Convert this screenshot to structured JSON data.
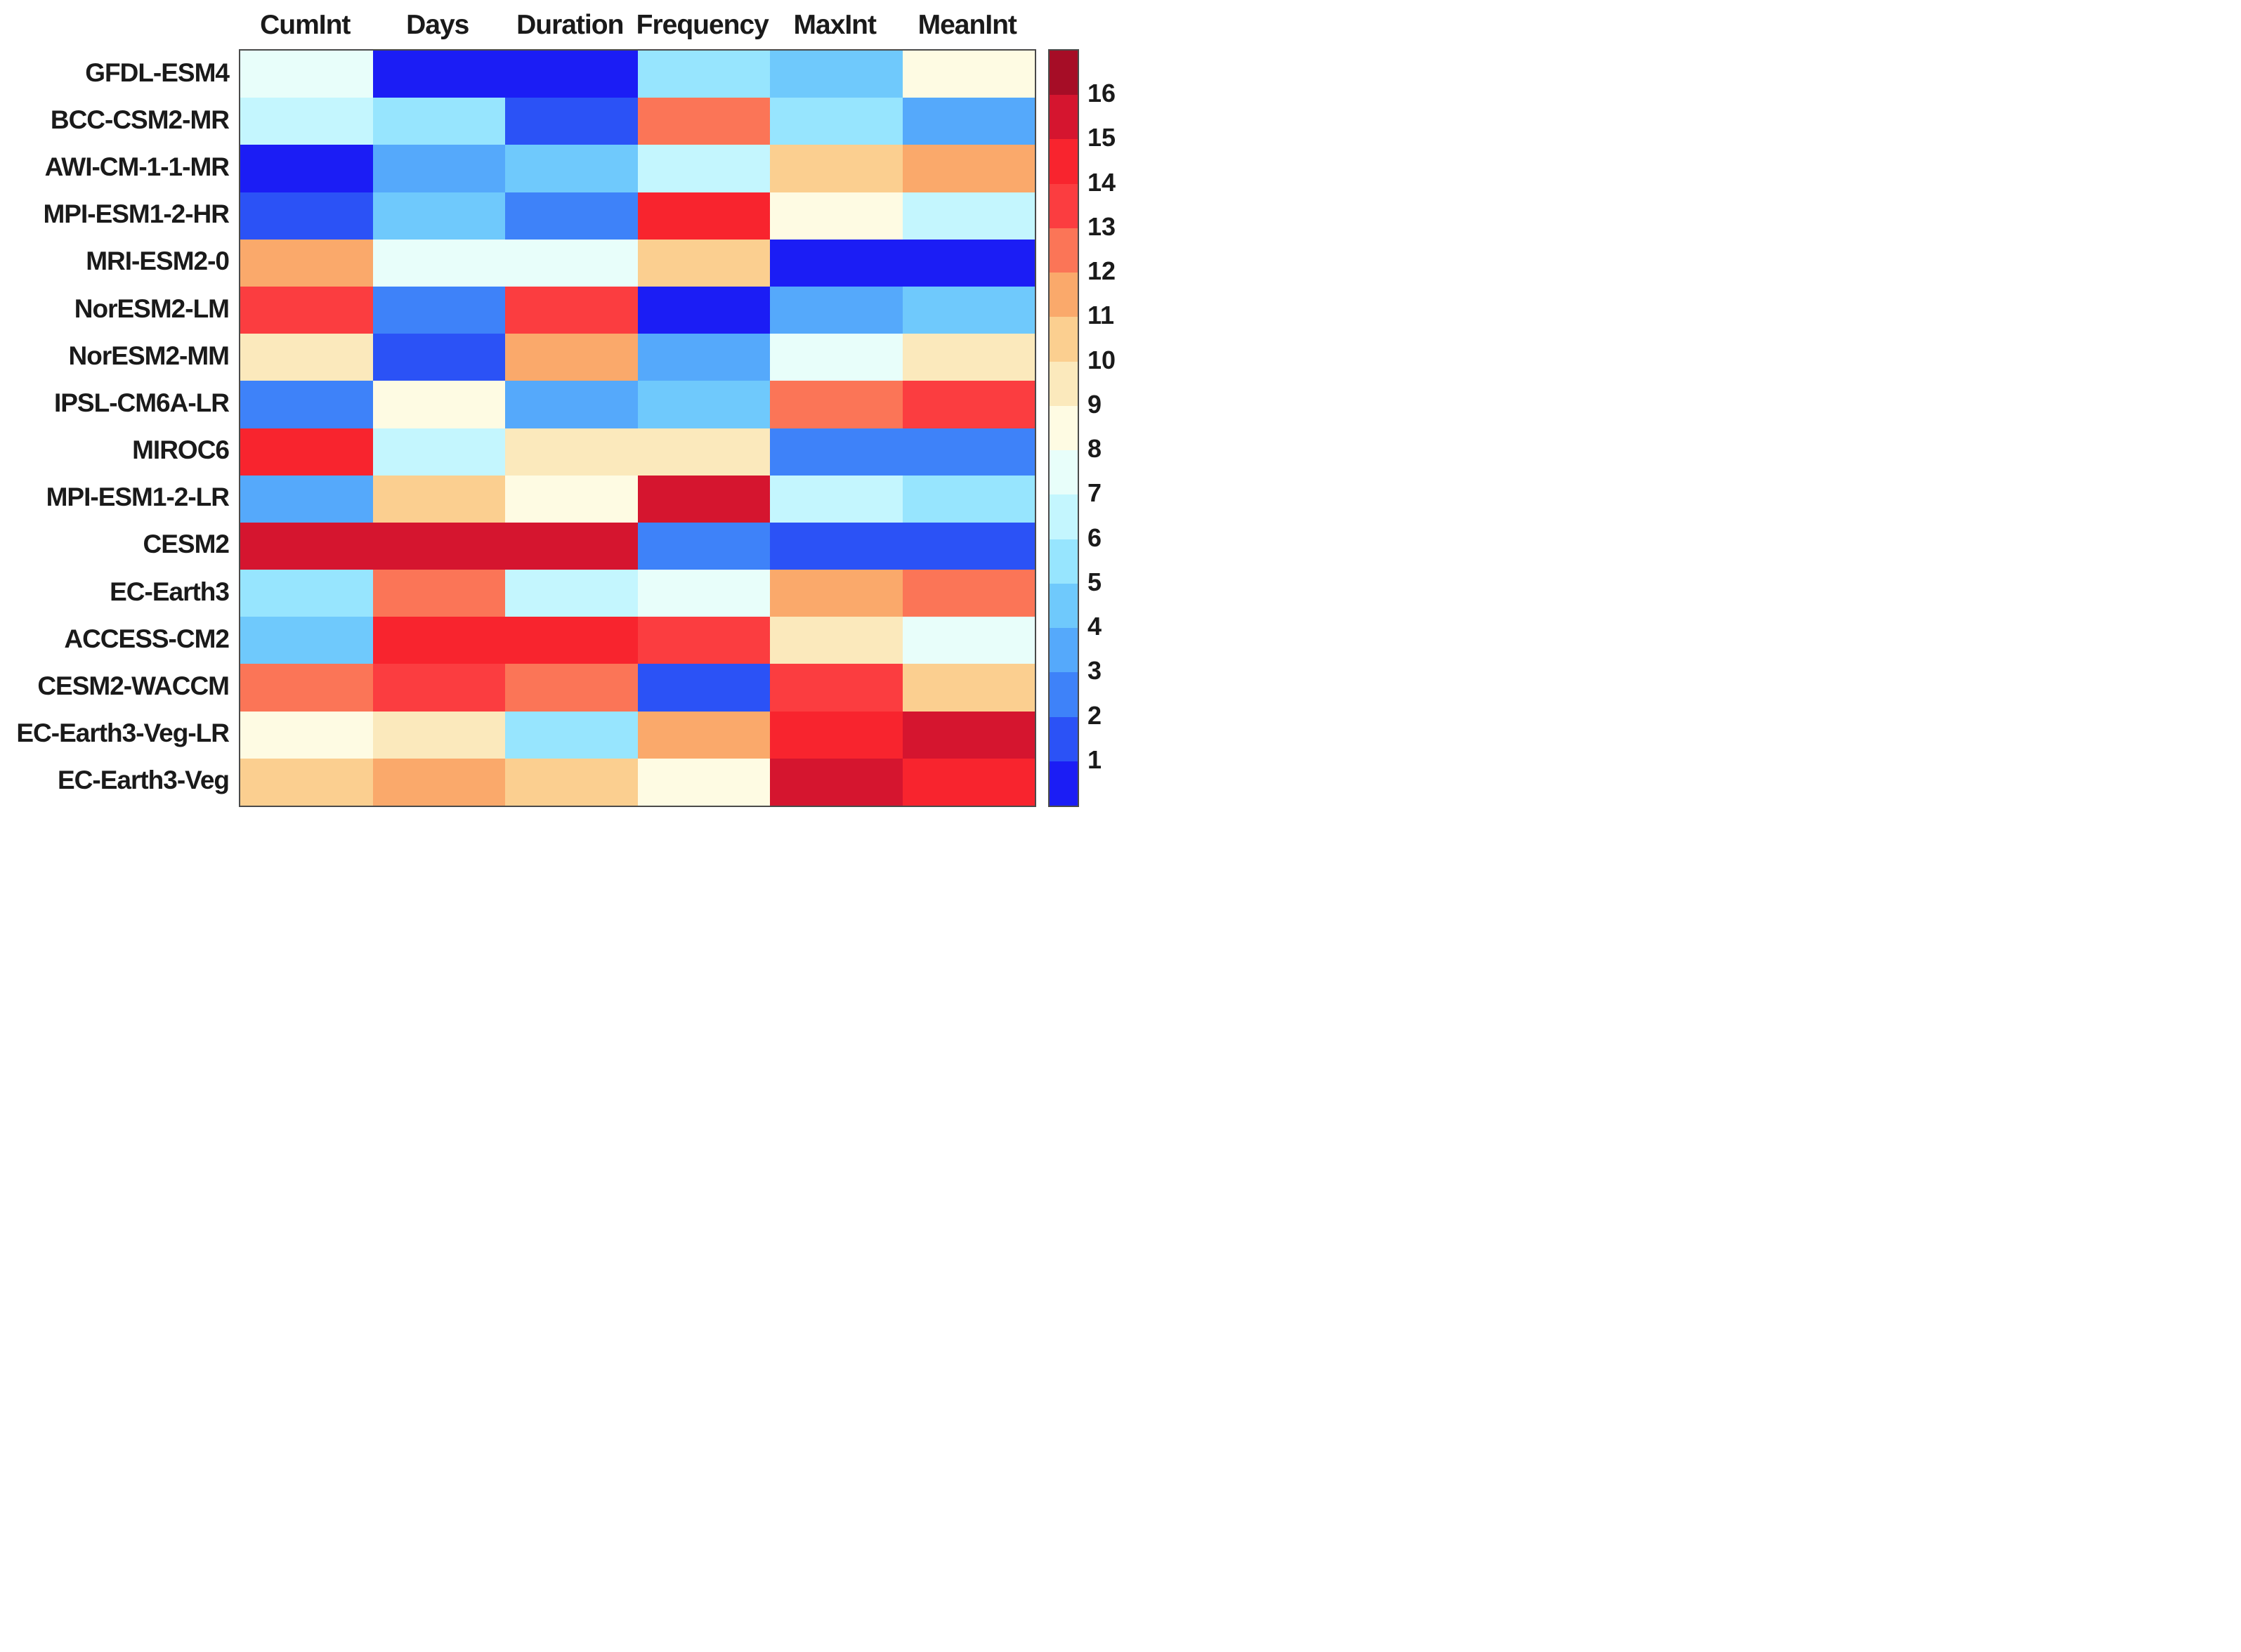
{
  "chart_data": {
    "type": "heatmap",
    "title": "",
    "x_categories": [
      "CumInt",
      "Days",
      "Duration",
      "Frequency",
      "MaxInt",
      "MeanInt"
    ],
    "y_categories": [
      "GFDL-ESM4",
      "BCC-CSM2-MR",
      "AWI-CM-1-1-MR",
      "MPI-ESM1-2-HR",
      "MRI-ESM2-0",
      "NorESM2-LM",
      "NorESM2-MM",
      "IPSL-CM6A-LR",
      "MIROC6",
      "MPI-ESM1-2-LR",
      "CESM2",
      "EC-Earth3",
      "ACCESS-CM2",
      "CESM2-WACCM",
      "EC-Earth3-Veg-LR",
      "EC-Earth3-Veg"
    ],
    "matrix": [
      [
        8,
        1,
        1,
        6,
        5,
        9
      ],
      [
        7,
        6,
        2,
        13,
        6,
        4
      ],
      [
        1,
        4,
        5,
        7,
        11,
        12
      ],
      [
        2,
        5,
        3,
        15,
        9,
        7
      ],
      [
        12,
        8,
        8,
        11,
        1,
        1
      ],
      [
        14,
        3,
        14,
        1,
        4,
        5
      ],
      [
        10,
        2,
        12,
        4,
        8,
        10
      ],
      [
        3,
        9,
        4,
        5,
        13,
        14
      ],
      [
        15,
        7,
        10,
        10,
        3,
        3
      ],
      [
        4,
        11,
        9,
        16,
        7,
        6
      ],
      [
        16,
        16,
        16,
        3,
        2,
        2
      ],
      [
        6,
        13,
        7,
        8,
        12,
        13
      ],
      [
        5,
        15,
        15,
        14,
        10,
        8
      ],
      [
        13,
        14,
        13,
        2,
        14,
        11
      ],
      [
        9,
        10,
        6,
        12,
        15,
        16
      ],
      [
        11,
        12,
        11,
        9,
        16,
        15
      ]
    ],
    "value_range": [
      1,
      16
    ],
    "legend_position": "right",
    "grid": false,
    "colorbar_tick_labels": [
      "16",
      "15",
      "14",
      "13",
      "12",
      "11",
      "10",
      "9",
      "8",
      "7",
      "6",
      "5",
      "4",
      "3",
      "2",
      "1"
    ],
    "value_colors": {
      "1": "#1B1DF5",
      "2": "#2B52F6",
      "3": "#3E82F9",
      "4": "#55A9FB",
      "5": "#6FC9FC",
      "6": "#97E5FE",
      "7": "#C4F6FE",
      "8": "#E8FEFA",
      "9": "#FEFBE3",
      "10": "#FBE9BC",
      "11": "#FBCF90",
      "12": "#FAA96B",
      "13": "#FB7557",
      "14": "#FB3D40",
      "15": "#F8242E",
      "16": "#D5152F"
    },
    "colorbar_top_band_color": "#A60D26",
    "border_color": "#4a4a4a",
    "text_color": "#1a1a1a"
  }
}
